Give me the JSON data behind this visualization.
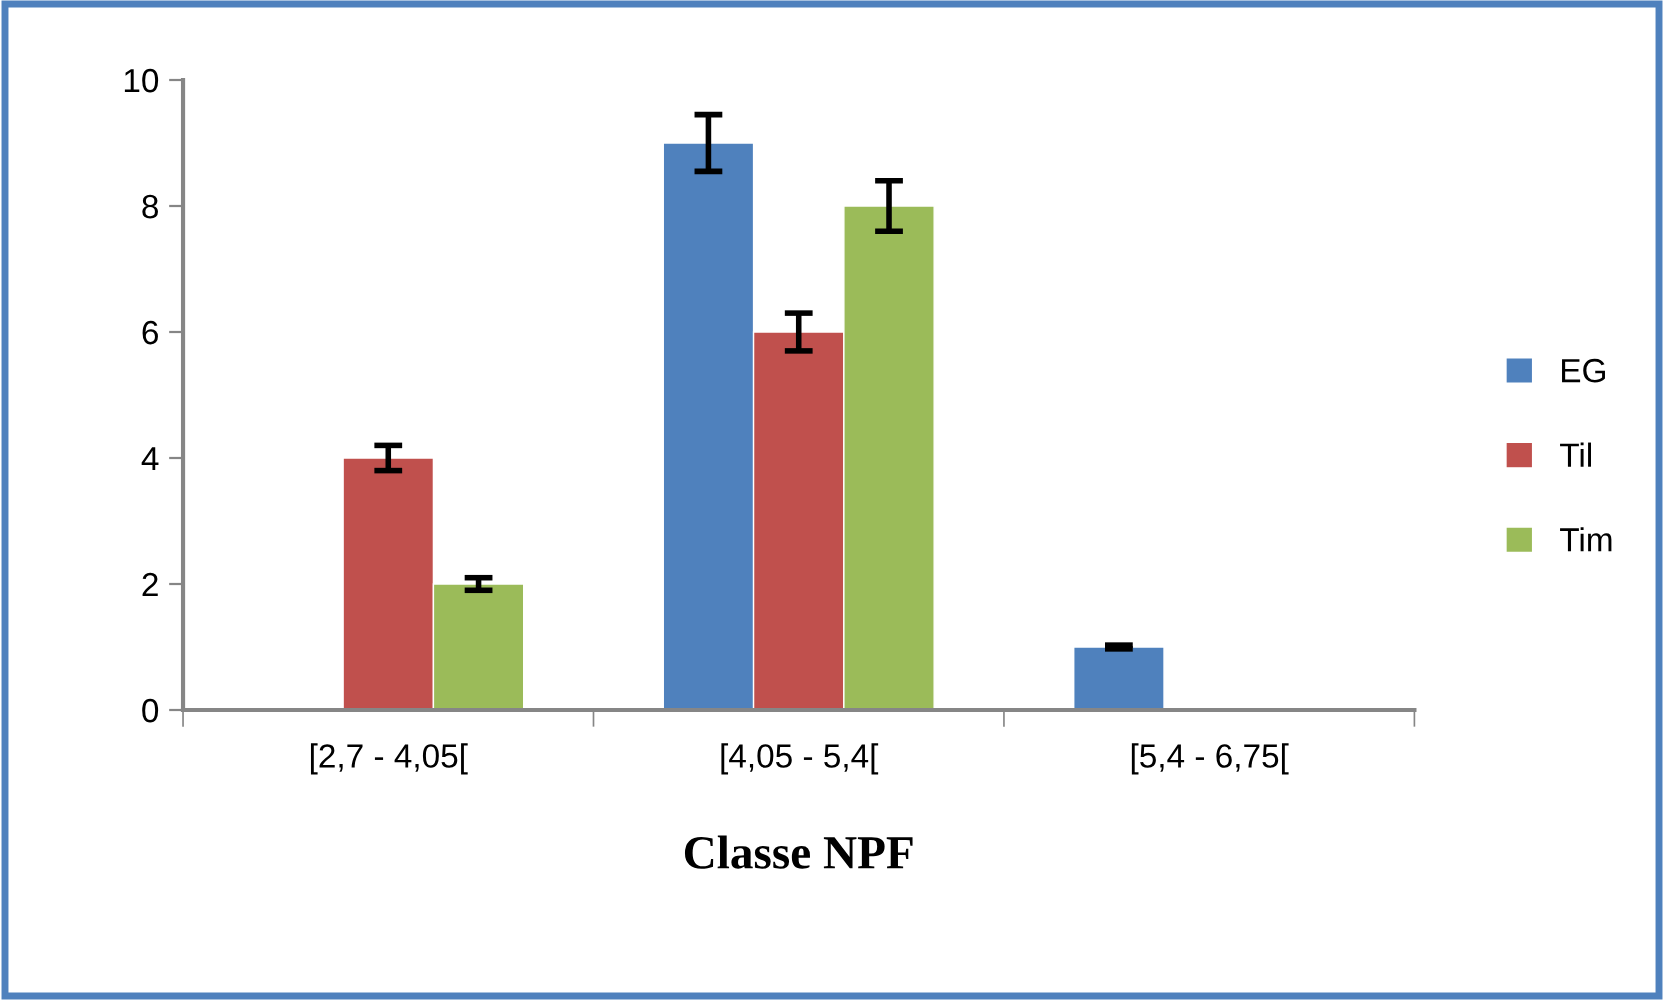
{
  "chart_data": {
    "type": "bar",
    "xlabel": "Classe NPF",
    "categories": [
      "[2,7 - 4,05[",
      "[4,05 - 5,4[",
      "[5,4 - 6,75["
    ],
    "series": [
      {
        "name": "EG",
        "color": "#4f81bd",
        "values": [
          null,
          9,
          1
        ],
        "errors": [
          null,
          0.45,
          0.03
        ]
      },
      {
        "name": "Til",
        "color": "#c0504d",
        "values": [
          4,
          6,
          null
        ],
        "errors": [
          0.2,
          0.3,
          null
        ]
      },
      {
        "name": "Tim",
        "color": "#9bbb59",
        "values": [
          2,
          8,
          null
        ],
        "errors": [
          0.1,
          0.4,
          null
        ]
      }
    ],
    "ylim": [
      0,
      10
    ],
    "yticks": [
      0,
      2,
      4,
      6,
      8,
      10
    ],
    "grid": false,
    "legend": "right"
  }
}
